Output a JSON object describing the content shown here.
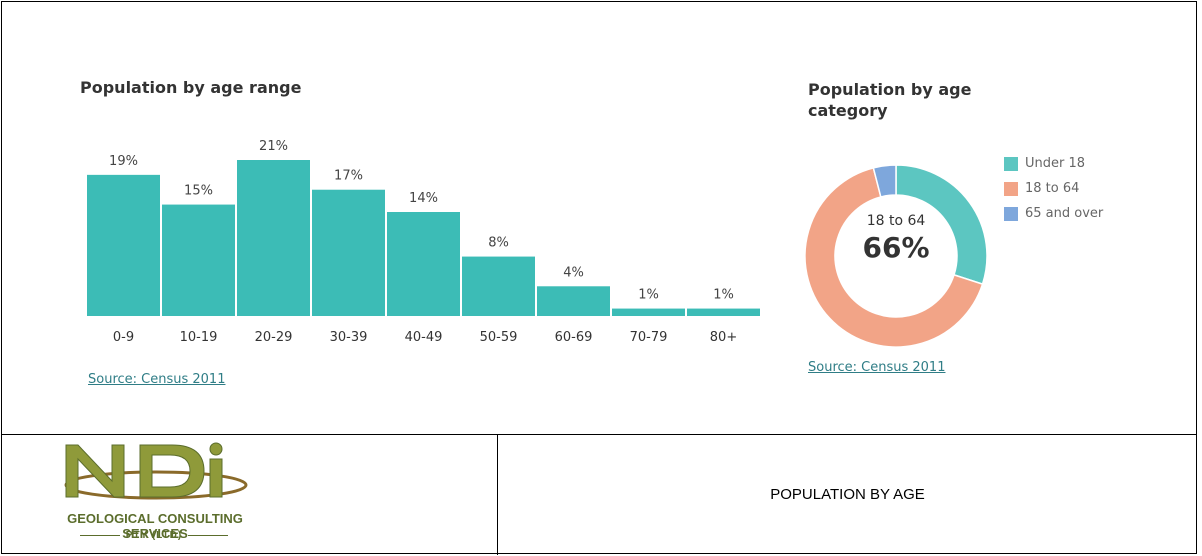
{
  "charts": {
    "left_title": "Population by age range",
    "left_source": "Source: Census 2011",
    "right_title": "Population by age category",
    "right_source": "Source: Census 2011",
    "center_category": "18 to 64",
    "center_value": "66%"
  },
  "chart_data": [
    {
      "type": "bar",
      "title": "Population by age range",
      "categories": [
        "0-9",
        "10-19",
        "20-29",
        "30-39",
        "40-49",
        "50-59",
        "60-69",
        "70-79",
        "80+"
      ],
      "values": [
        19,
        15,
        21,
        17,
        14,
        8,
        4,
        1,
        1
      ],
      "value_labels": [
        "19%",
        "15%",
        "21%",
        "17%",
        "14%",
        "8%",
        "4%",
        "1%",
        "1%"
      ],
      "xlabel": "",
      "ylabel": "",
      "ylim": [
        0,
        21
      ],
      "grid": false,
      "color": "#3cbcb6"
    },
    {
      "type": "pie",
      "title": "Population by age category",
      "categories": [
        "Under 18",
        "18 to 64",
        "65 and over"
      ],
      "values": [
        30,
        66,
        4
      ],
      "colors": [
        "#5cc6c1",
        "#f2a487",
        "#7ea7dc"
      ],
      "legend_position": "right"
    }
  ],
  "footer": {
    "logo_main": "GEOLOGICAL CONSULTING SERVICES",
    "logo_sub": "PTY (LTD)",
    "caption": "POPULATION BY AGE"
  }
}
